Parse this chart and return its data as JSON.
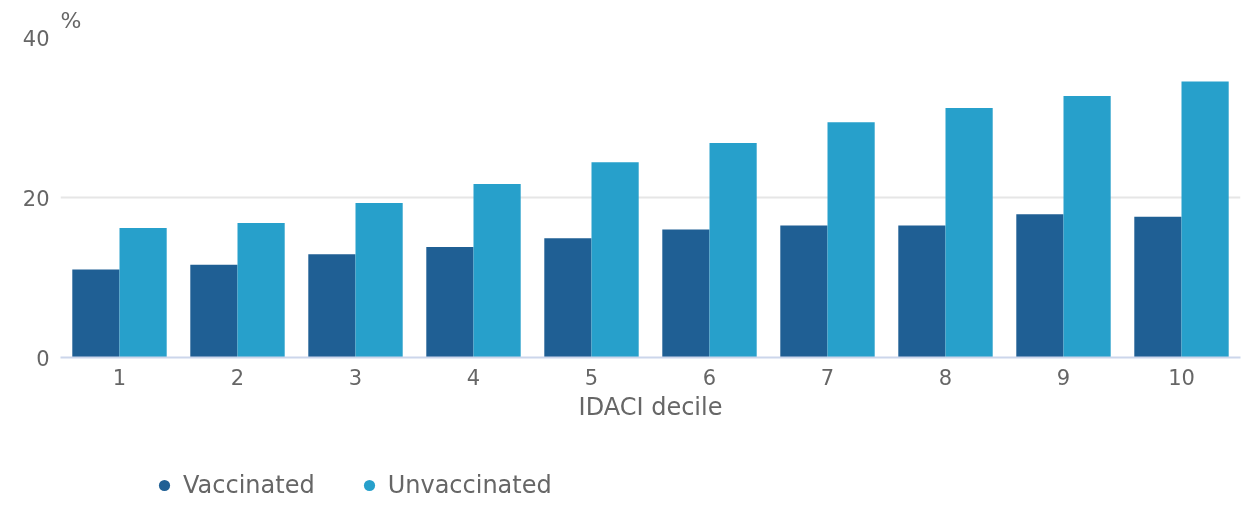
{
  "chart_data": {
    "type": "bar",
    "ylabel": "%",
    "xlabel": "IDACI decile",
    "categories": [
      "1",
      "2",
      "3",
      "4",
      "5",
      "6",
      "7",
      "8",
      "9",
      "10"
    ],
    "series": [
      {
        "name": "Vaccinated",
        "color": "#1f5f94",
        "values": [
          11.0,
          11.6,
          12.9,
          13.8,
          14.9,
          16.0,
          16.5,
          16.5,
          17.9,
          17.6
        ]
      },
      {
        "name": "Unvaccinated",
        "color": "#27a0cb",
        "values": [
          16.2,
          16.8,
          19.3,
          21.7,
          24.4,
          26.8,
          29.4,
          31.2,
          32.7,
          34.5
        ]
      }
    ],
    "ylim": [
      0,
      40
    ],
    "yticks": [
      0,
      20,
      40
    ],
    "grid": "y",
    "legend": "bottom left"
  }
}
